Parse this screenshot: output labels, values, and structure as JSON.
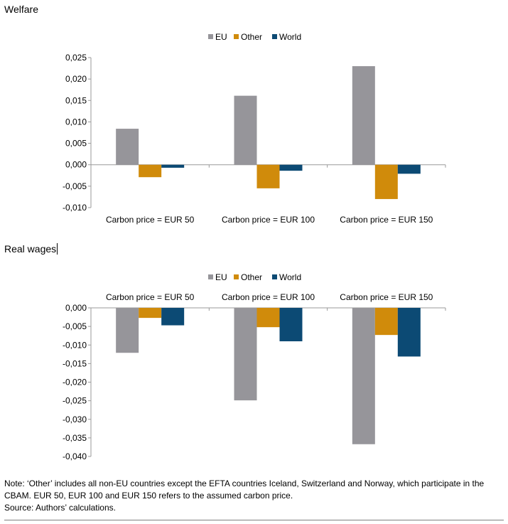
{
  "colors": {
    "EU": "#96959a",
    "Other": "#d08b0b",
    "World": "#0c4a74",
    "axis": "#9a9a9a"
  },
  "legend": [
    "EU",
    "Other",
    "World"
  ],
  "chart_data": [
    {
      "type": "bar",
      "title": "Welfare",
      "categories": [
        "Carbon price = EUR 50",
        "Carbon price = EUR 100",
        "Carbon price = EUR 150"
      ],
      "series": [
        {
          "name": "EU",
          "values": [
            0.0084,
            0.0161,
            0.023
          ]
        },
        {
          "name": "Other",
          "values": [
            -0.0029,
            -0.0055,
            -0.008
          ]
        },
        {
          "name": "World",
          "values": [
            -0.0007,
            -0.0014,
            -0.0021
          ]
        }
      ],
      "ylim": [
        -0.01,
        0.025
      ],
      "yticks": [
        0.025,
        0.02,
        0.015,
        0.01,
        0.005,
        0,
        -0.005,
        -0.01
      ],
      "ytick_labels": [
        "0,025",
        "0,020",
        "0,015",
        "0,010",
        "0,005",
        "0,000",
        "-0,005",
        "-0,010"
      ],
      "legend_position": "top",
      "category_labels_position": "bottom",
      "grid": false
    },
    {
      "type": "bar",
      "title": "Real wages",
      "categories": [
        "Carbon price = EUR 50",
        "Carbon price = EUR 100",
        "Carbon price = EUR 150"
      ],
      "series": [
        {
          "name": "EU",
          "values": [
            -0.0121,
            -0.0249,
            -0.0367
          ]
        },
        {
          "name": "Other",
          "values": [
            -0.0027,
            -0.0052,
            -0.0073
          ]
        },
        {
          "name": "World",
          "values": [
            -0.0047,
            -0.009,
            -0.0131
          ]
        }
      ],
      "ylim": [
        -0.04,
        0
      ],
      "yticks": [
        0,
        -0.005,
        -0.01,
        -0.015,
        -0.02,
        -0.025,
        -0.03,
        -0.035,
        -0.04
      ],
      "ytick_labels": [
        "0,000",
        "-0,005",
        "-0,010",
        "-0,015",
        "-0,020",
        "-0,025",
        "-0,030",
        "-0,035",
        "-0,040"
      ],
      "legend_position": "top",
      "category_labels_position": "top",
      "grid": false
    }
  ],
  "footer": {
    "note": "Note: ‘Other’ includes all non-EU countries except the EFTA countries Iceland, Switzerland and Norway, which participate in the CBAM. EUR 50, EUR 100 and EUR 150 refers to the assumed carbon price.",
    "source": "Source: Authors’ calculations."
  }
}
